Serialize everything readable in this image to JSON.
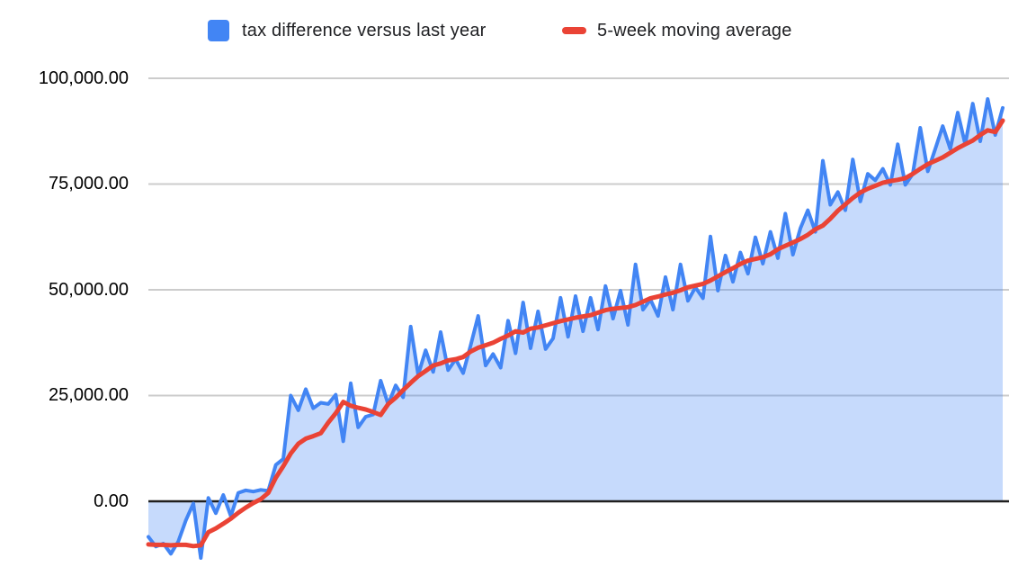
{
  "legend": {
    "items": [
      {
        "label": "tax difference versus last year",
        "color": "#4285F4",
        "swatch": "square"
      },
      {
        "label": "5-week moving average",
        "color": "#EA4335",
        "swatch": "dash"
      }
    ]
  },
  "colors": {
    "series_line": "#4285F4",
    "series_fill": "rgba(66,133,244,0.3)",
    "moving_average_line": "#EA4335",
    "gridline": "#cccccc",
    "zero_axis_line": "#1f1f1f",
    "axis_text": "#000000",
    "legend_text": "#202124",
    "background": "#ffffff"
  },
  "chart_data": {
    "type": "area",
    "title": "",
    "xlabel": "",
    "ylabel": "",
    "x_tick_labels": [],
    "y_axis": {
      "ticks": [
        0,
        25000,
        50000,
        75000,
        100000
      ],
      "tick_labels": [
        "0.00",
        "25,000.00",
        "50,000.00",
        "75,000.00",
        "100,000.00"
      ],
      "range": [
        -16000,
        100000
      ],
      "grid": true
    },
    "legend_position": "top",
    "n_points": 115,
    "series": [
      {
        "name": "tax difference versus last year",
        "type": "area-line",
        "color": "#4285F4",
        "fill": "rgba(66,133,244,0.3)",
        "values": [
          -8400,
          -10700,
          -10000,
          -12400,
          -9500,
          -4500,
          -500,
          -13400,
          800,
          -2800,
          1500,
          -3500,
          2000,
          2600,
          2300,
          2700,
          2500,
          8600,
          10000,
          25000,
          21500,
          26500,
          22000,
          23300,
          23000,
          25200,
          14200,
          27900,
          17500,
          20000,
          20500,
          28500,
          22900,
          27400,
          24600,
          41300,
          29900,
          35700,
          30600,
          40000,
          31000,
          33600,
          30300,
          36800,
          43800,
          32100,
          34800,
          31600,
          42700,
          35000,
          47000,
          36200,
          44900,
          36000,
          38500,
          48100,
          38900,
          48500,
          40200,
          48100,
          40600,
          50900,
          43200,
          49800,
          41700,
          56000,
          45300,
          47700,
          43800,
          53000,
          45300,
          56000,
          47400,
          50600,
          48000,
          62600,
          49800,
          58100,
          51900,
          58800,
          53800,
          62400,
          56200,
          63700,
          57500,
          68000,
          58300,
          64500,
          68800,
          63700,
          80500,
          70100,
          73100,
          68800,
          80800,
          70900,
          77400,
          75900,
          78600,
          74800,
          84400,
          74800,
          77400,
          88300,
          78000,
          83300,
          88700,
          83300,
          91900,
          84400,
          94000,
          85100,
          95100,
          86600,
          93000
        ]
      },
      {
        "name": "5-week moving average",
        "type": "line",
        "color": "#EA4335",
        "values": [
          -10200,
          -10300,
          -10300,
          -10400,
          -10300,
          -10300,
          -10600,
          -10400,
          -7300,
          -6400,
          -5300,
          -4100,
          -2700,
          -1500,
          -400,
          500,
          2000,
          5600,
          8300,
          11300,
          13600,
          14800,
          15400,
          16100,
          18600,
          20800,
          23500,
          22600,
          22100,
          21700,
          21100,
          20400,
          23000,
          24500,
          26300,
          28000,
          29600,
          30800,
          32100,
          32600,
          33300,
          33600,
          34100,
          35400,
          36300,
          36900,
          37500,
          38400,
          39200,
          40200,
          39900,
          40800,
          41100,
          41600,
          42100,
          42600,
          43000,
          43400,
          43700,
          44000,
          44600,
          45200,
          45500,
          45700,
          45900,
          46400,
          47200,
          48000,
          48400,
          48900,
          49300,
          49900,
          50600,
          51000,
          51400,
          52200,
          53200,
          54200,
          55100,
          56100,
          56900,
          57300,
          57700,
          58400,
          59600,
          60400,
          61200,
          62000,
          63000,
          64300,
          65200,
          66800,
          68700,
          70200,
          71700,
          73000,
          73900,
          74600,
          75300,
          75700,
          76000,
          76400,
          77400,
          78600,
          79700,
          80500,
          81300,
          82400,
          83500,
          84400,
          85300,
          86600,
          87700,
          87300,
          90000
        ]
      }
    ]
  }
}
